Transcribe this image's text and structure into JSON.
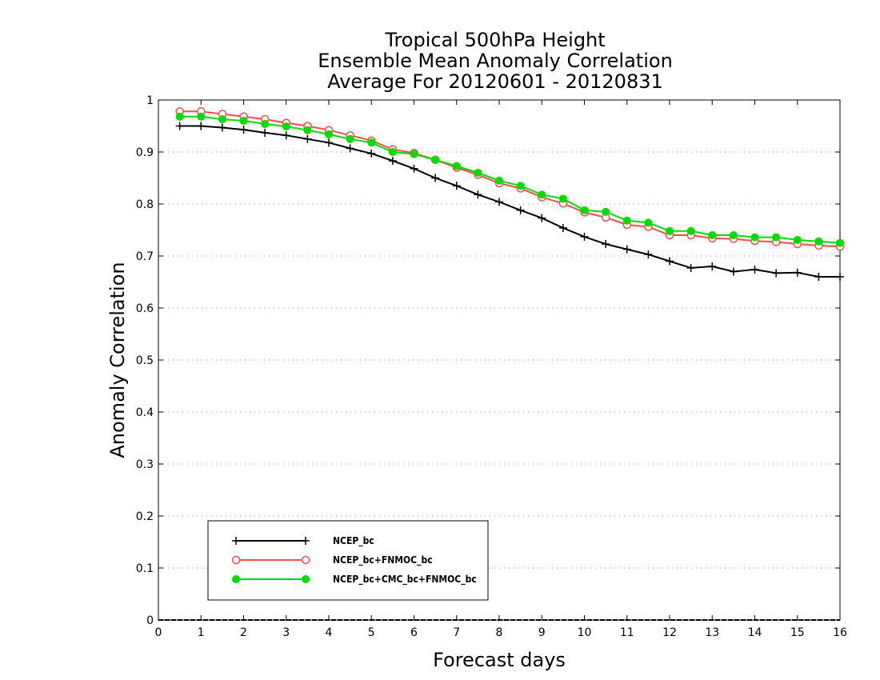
{
  "chart_data": {
    "type": "line",
    "title": [
      "Tropical 500hPa Height",
      "Ensemble Mean Anomaly Correlation",
      "Average For 20120601 - 20120831"
    ],
    "xlabel": "Forecast days",
    "ylabel": "Anomaly Correlation",
    "xlim": [
      0,
      16
    ],
    "ylim": [
      0,
      1
    ],
    "xticks": [
      "0",
      "1",
      "2",
      "3",
      "4",
      "5",
      "6",
      "7",
      "8",
      "9",
      "10",
      "11",
      "12",
      "13",
      "14",
      "15",
      "16"
    ],
    "yticks": [
      "0",
      "0.1",
      "0.2",
      "0.3",
      "0.4",
      "0.5",
      "0.6",
      "0.7",
      "0.8",
      "0.9",
      "1"
    ],
    "grid": "horizontal dotted",
    "legend_position": "bottom-left",
    "x": [
      0.5,
      1,
      1.5,
      2,
      2.5,
      3,
      3.5,
      4,
      4.5,
      5,
      5.5,
      6,
      6.5,
      7,
      7.5,
      8,
      8.5,
      9,
      9.5,
      10,
      10.5,
      11,
      11.5,
      12,
      12.5,
      13,
      13.5,
      14,
      14.5,
      15,
      15.5,
      16
    ],
    "series": [
      {
        "name": "NCEP_bc",
        "color": "#000000",
        "marker": "plus",
        "values": [
          0.95,
          0.95,
          0.947,
          0.943,
          0.937,
          0.932,
          0.925,
          0.918,
          0.907,
          0.897,
          0.883,
          0.868,
          0.85,
          0.835,
          0.818,
          0.804,
          0.788,
          0.773,
          0.754,
          0.737,
          0.723,
          0.713,
          0.703,
          0.69,
          0.677,
          0.68,
          0.67,
          0.674,
          0.667,
          0.668,
          0.66,
          0.66
        ]
      },
      {
        "name": "NCEP_bc+FNMOC_bc",
        "color": "#ff4a4a",
        "marker": "open-circle",
        "values": [
          0.978,
          0.978,
          0.973,
          0.968,
          0.963,
          0.956,
          0.95,
          0.942,
          0.932,
          0.922,
          0.905,
          0.898,
          0.885,
          0.87,
          0.856,
          0.84,
          0.83,
          0.813,
          0.801,
          0.784,
          0.774,
          0.76,
          0.756,
          0.74,
          0.74,
          0.734,
          0.733,
          0.729,
          0.727,
          0.723,
          0.72,
          0.718
        ]
      },
      {
        "name": "NCEP_bc+CMC_bc+FNMOC_bc",
        "color": "#00dd00",
        "marker": "filled-circle",
        "values": [
          0.968,
          0.968,
          0.963,
          0.96,
          0.954,
          0.949,
          0.942,
          0.934,
          0.925,
          0.918,
          0.9,
          0.896,
          0.885,
          0.873,
          0.86,
          0.845,
          0.835,
          0.818,
          0.81,
          0.788,
          0.785,
          0.768,
          0.764,
          0.748,
          0.748,
          0.74,
          0.74,
          0.736,
          0.736,
          0.731,
          0.728,
          0.725
        ]
      }
    ]
  }
}
